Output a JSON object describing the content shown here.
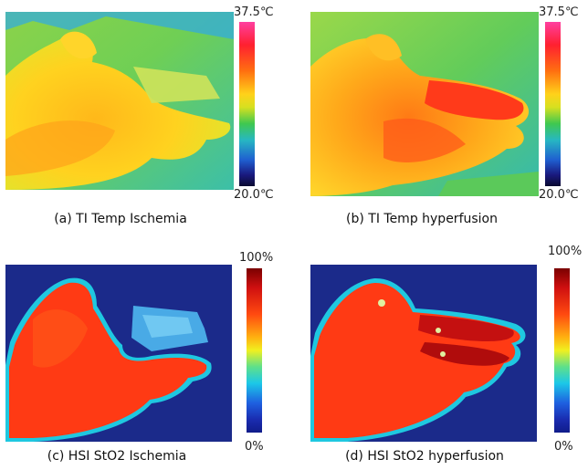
{
  "panels": [
    {
      "id": "a",
      "caption": "(a) TI Temp Ischemia",
      "scale_max": "37.5℃",
      "scale_min": "20.0℃"
    },
    {
      "id": "b",
      "caption": "(b) TI Temp hyperfusion",
      "scale_max": "37.5℃",
      "scale_min": "20.0℃"
    },
    {
      "id": "c",
      "caption": "(c) HSI StO2 Ischemia",
      "scale_max": "100%",
      "scale_min": "0%"
    },
    {
      "id": "d",
      "caption": "(d) HSI StO2 hyperfusion",
      "scale_max": "100%",
      "scale_min": "0%"
    }
  ],
  "colors": {
    "thermal_background": "#49c8b0",
    "sto2_background": "#1b2a8a",
    "hand_warm": "#ffc21a",
    "hand_hot": "#ff4a1a"
  }
}
